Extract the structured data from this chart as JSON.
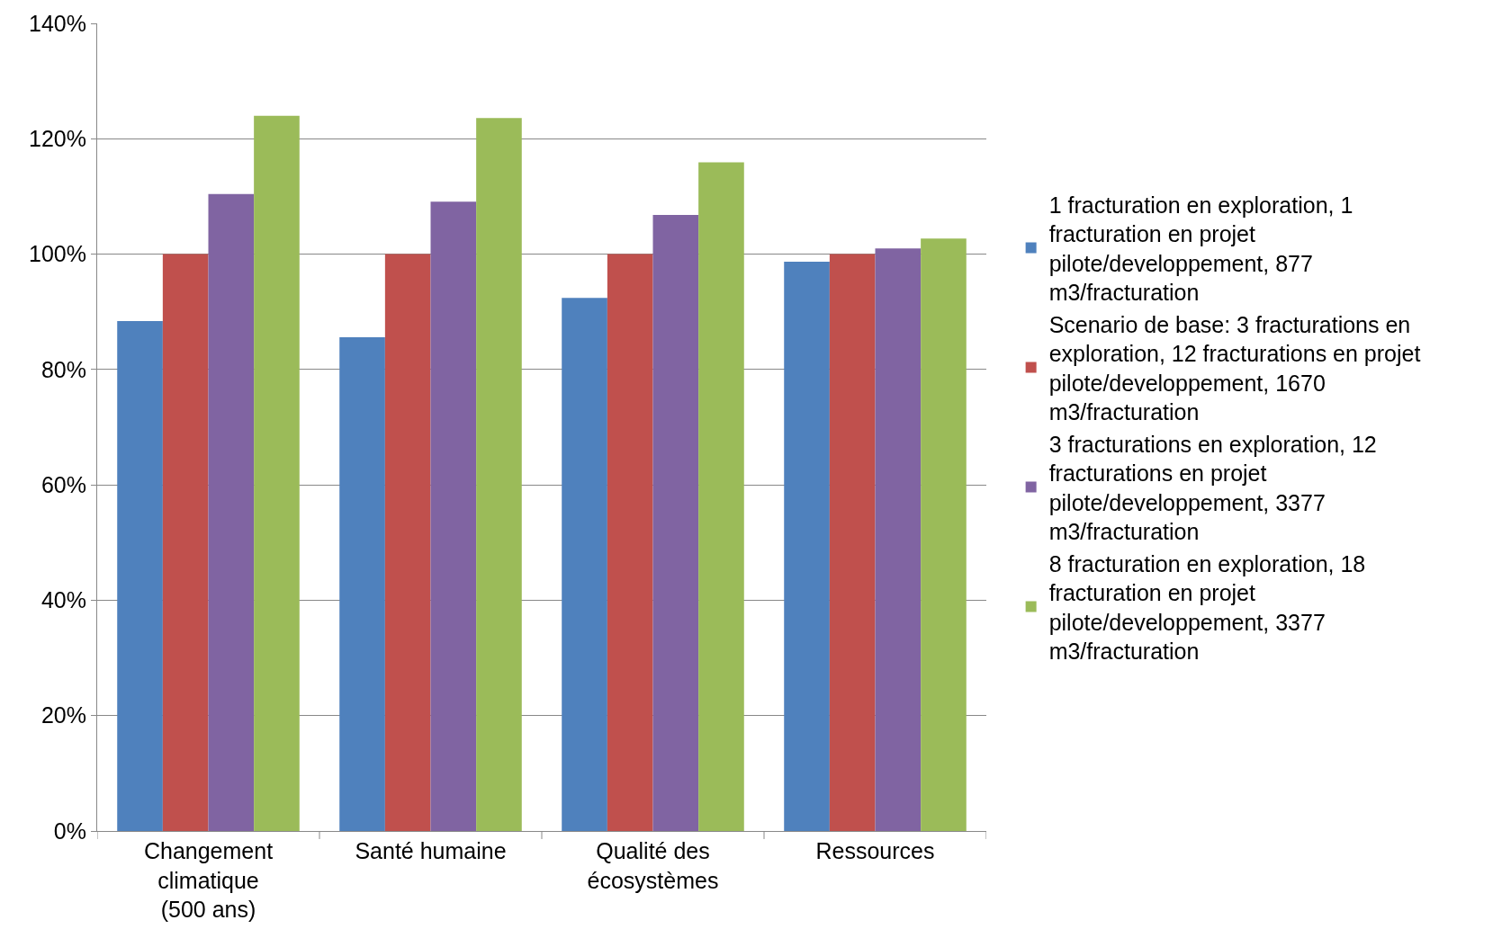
{
  "chart_data": {
    "type": "bar",
    "categories": [
      "Changement climatique (500 ans)",
      "Santé humaine",
      "Qualité des écosystèmes",
      "Ressources"
    ],
    "series": [
      {
        "name": "1 fracturation en exploration, 1 fracturation en projet pilote/developpement, 877 m3/fracturation",
        "color": "#4f81bd",
        "values": [
          88.4,
          85.6,
          92.4,
          98.7
        ]
      },
      {
        "name": "Scenario de base: 3 fracturations en exploration, 12 fracturations en projet pilote/developpement, 1670 m3/fracturation",
        "color": "#c0504d",
        "values": [
          100,
          100,
          100,
          100
        ]
      },
      {
        "name": "3 fracturations en exploration, 12 fracturations en projet pilote/developpement, 3377 m3/fracturation",
        "color": "#8064a2",
        "values": [
          110.4,
          109.1,
          106.8,
          101.0
        ]
      },
      {
        "name": "8 fracturation en exploration, 18 fracturation en projet pilote/developpement, 3377 m3/fracturation",
        "color": "#9bbb59",
        "values": [
          124.0,
          123.6,
          115.9,
          102.7
        ]
      }
    ],
    "ylim": [
      0,
      140
    ],
    "yticks": [
      {
        "value": 0,
        "label": "0%"
      },
      {
        "value": 20,
        "label": "20%"
      },
      {
        "value": 40,
        "label": "40%"
      },
      {
        "value": 60,
        "label": "60%"
      },
      {
        "value": 80,
        "label": "80%"
      },
      {
        "value": 100,
        "label": "100%"
      },
      {
        "value": 120,
        "label": "120%"
      },
      {
        "value": 140,
        "label": "140%"
      }
    ],
    "grid": "y",
    "legend": "right"
  }
}
